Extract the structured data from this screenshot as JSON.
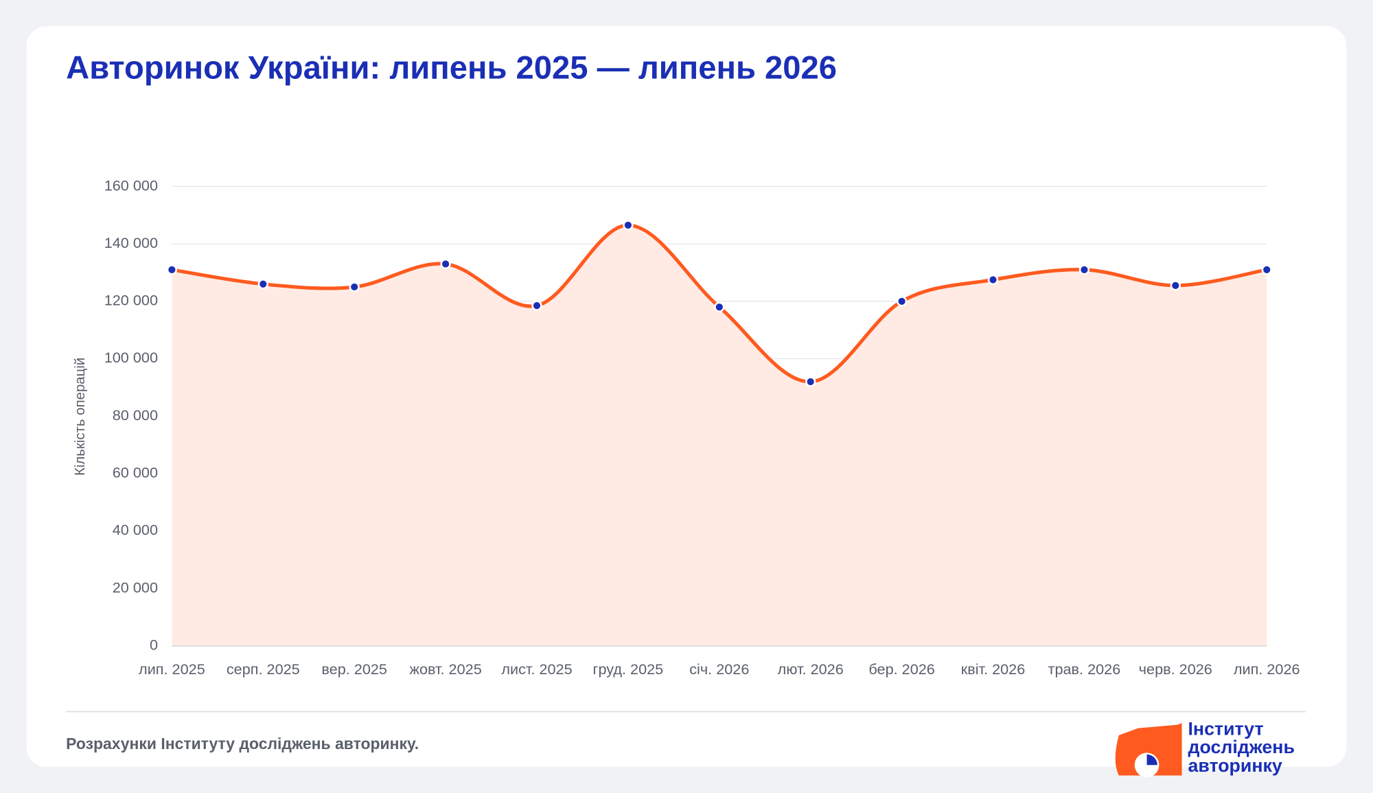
{
  "chart_data": {
    "type": "line",
    "title": "Авторинок України: липень 2025 — липень 2026",
    "y_label": "Кількість операцій",
    "categories": [
      "лип. 2025",
      "серп. 2025",
      "вер. 2025",
      "жовт. 2025",
      "лист. 2025",
      "груд. 2025",
      "січ. 2026",
      "лют. 2026",
      "бер. 2026",
      "квіт. 2026",
      "трав. 2026",
      "черв. 2026",
      "лип. 2026"
    ],
    "values": [
      131000,
      126000,
      125000,
      133000,
      118500,
      146500,
      118000,
      92000,
      120000,
      127500,
      131000,
      125500,
      131000
    ],
    "color": "#ff5a1f",
    "area_color": "#ffebe3",
    "marker_color": "#1a2fb5",
    "ylim": [
      0,
      160000
    ],
    "yticks": [
      0,
      {
        "value": 20000,
        "label": "20 000"
      },
      {
        "value": 40000,
        "label": "40 000"
      },
      {
        "value": 60000,
        "label": "60 000"
      },
      {
        "value": 80000,
        "label": "80 000"
      },
      {
        "value": 100000,
        "label": "100 000"
      },
      {
        "value": 120000,
        "label": "120 000"
      },
      {
        "value": 140000,
        "label": "140 000"
      },
      {
        "value": 160000,
        "label": "160 000"
      }
    ],
    "grid": true
  },
  "source": "Розрахунки Інституту досліджень авторинку.",
  "logo": {
    "lines": [
      "Інститут",
      "досліджень",
      "авторинку"
    ]
  }
}
